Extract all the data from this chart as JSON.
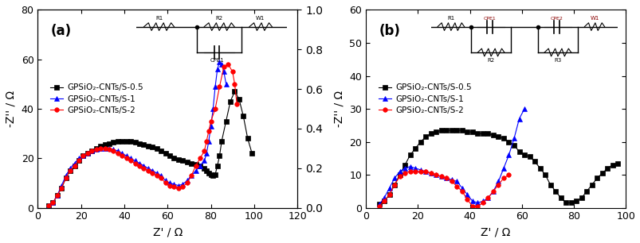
{
  "panel_a": {
    "title": "(a)",
    "xlabel": "Z' / Ω",
    "ylabel": "-Z'' / Ω",
    "xlim": [
      0,
      120
    ],
    "ylim": [
      0,
      80
    ],
    "xticks": [
      0,
      20,
      40,
      60,
      80,
      100,
      120
    ],
    "yticks": [
      0,
      20,
      40,
      60,
      80
    ],
    "series": {
      "black": {
        "label": "GPSiO₂-CNTs/S-0.5",
        "color": "black",
        "marker": "s",
        "x": [
          5,
          7,
          9,
          11,
          13,
          15,
          17,
          19,
          21,
          23,
          25,
          27,
          29,
          31,
          33,
          35,
          37,
          39,
          41,
          43,
          45,
          47,
          49,
          51,
          53,
          55,
          57,
          59,
          61,
          63,
          65,
          67,
          69,
          71,
          73,
          75,
          77,
          78,
          79,
          80,
          81,
          82,
          83,
          84,
          85,
          87,
          89,
          91,
          93,
          95,
          97,
          99
        ],
        "y": [
          1,
          2,
          5,
          8,
          12,
          15,
          17,
          19,
          21,
          22,
          23,
          24,
          25,
          25.5,
          26,
          26.5,
          27,
          27,
          27,
          27,
          26.5,
          26,
          25.5,
          25,
          24.5,
          24,
          23,
          22,
          21,
          20,
          19.5,
          19,
          18.5,
          18,
          17.5,
          17,
          16,
          15,
          14,
          13.5,
          13,
          13.5,
          17,
          21,
          27,
          35,
          43,
          47,
          44,
          37,
          28,
          22
        ]
      },
      "blue": {
        "label": "GPSiO₂-CNTs/S-1",
        "color": "blue",
        "marker": "^",
        "x": [
          5,
          7,
          9,
          11,
          13,
          15,
          17,
          19,
          21,
          23,
          25,
          27,
          29,
          31,
          33,
          35,
          37,
          39,
          41,
          43,
          45,
          47,
          49,
          51,
          53,
          55,
          57,
          59,
          61,
          63,
          65,
          67,
          69,
          71,
          73,
          75,
          77,
          78,
          79,
          80,
          81,
          82,
          83,
          84,
          85,
          86,
          87
        ],
        "y": [
          1,
          2,
          5,
          9,
          13,
          16,
          18,
          20,
          21,
          22,
          23,
          23.5,
          24,
          24,
          24,
          23.5,
          23,
          22,
          21,
          20,
          19,
          18,
          17,
          16,
          15,
          14,
          13,
          11,
          10,
          9.5,
          9,
          9.5,
          11,
          13,
          15,
          17,
          19,
          22,
          27,
          33,
          40,
          49,
          56,
          59,
          58,
          55,
          50
        ]
      },
      "red": {
        "label": "GPSiO₂-CNTs/S-2",
        "color": "red",
        "marker": "o",
        "x": [
          5,
          7,
          9,
          11,
          13,
          15,
          17,
          19,
          21,
          23,
          25,
          27,
          29,
          31,
          33,
          35,
          37,
          39,
          41,
          43,
          45,
          47,
          49,
          51,
          53,
          55,
          57,
          59,
          61,
          63,
          65,
          67,
          69,
          71,
          73,
          75,
          77,
          78,
          79,
          80,
          82,
          84,
          86,
          88,
          90,
          91,
          92
        ],
        "y": [
          1,
          2,
          5,
          8,
          12,
          15,
          17,
          19,
          21,
          22,
          23,
          23.5,
          24,
          24,
          23.5,
          23,
          22,
          21,
          20,
          19,
          18,
          17,
          16,
          15,
          14,
          13,
          12,
          10,
          9,
          8.5,
          8,
          8.5,
          10,
          13,
          17,
          20,
          23,
          27,
          31,
          35,
          40,
          49,
          57,
          58,
          55,
          50,
          42
        ]
      }
    }
  },
  "panel_b": {
    "title": "(b)",
    "xlabel": "Z' / Ω",
    "ylabel": "-Z'' / Ω",
    "xlim": [
      0,
      100
    ],
    "ylim": [
      0,
      60
    ],
    "xticks": [
      0,
      20,
      40,
      60,
      80,
      100
    ],
    "yticks": [
      0,
      10,
      20,
      30,
      40,
      50,
      60
    ],
    "series": {
      "black": {
        "label": "GPSiO₂-CNTs/S-0.5",
        "color": "black",
        "marker": "s",
        "x": [
          5,
          7,
          9,
          11,
          13,
          15,
          17,
          19,
          21,
          23,
          25,
          27,
          29,
          31,
          33,
          35,
          37,
          39,
          41,
          43,
          45,
          47,
          49,
          51,
          53,
          55,
          57,
          59,
          61,
          63,
          65,
          67,
          69,
          71,
          73,
          75,
          77,
          79,
          81,
          83,
          85,
          87,
          89,
          91,
          93,
          95,
          97
        ],
        "y": [
          1,
          2,
          4,
          7,
          10,
          13,
          16,
          18,
          20,
          21.5,
          22.5,
          23,
          23.5,
          23.5,
          23.5,
          23.5,
          23.5,
          23,
          23,
          22.5,
          22.5,
          22.5,
          22,
          21.5,
          21,
          20,
          19,
          17,
          16,
          15.5,
          14,
          12,
          10,
          7,
          5,
          3,
          1.5,
          1.5,
          2,
          3,
          5,
          7,
          9,
          10.5,
          12,
          13,
          13.5
        ]
      },
      "blue": {
        "label": "GPSiO₂-CNTs/S-1",
        "color": "blue",
        "marker": "^",
        "x": [
          5,
          7,
          9,
          11,
          13,
          15,
          17,
          19,
          21,
          23,
          25,
          27,
          29,
          31,
          33,
          35,
          37,
          39,
          41,
          43,
          45,
          47,
          49,
          51,
          53,
          55,
          57,
          59,
          61
        ],
        "y": [
          1,
          3,
          6,
          9,
          11,
          12,
          12.5,
          12,
          11.5,
          11,
          10.5,
          10,
          9.5,
          9,
          8.5,
          8,
          6,
          4,
          2,
          1.5,
          2,
          3,
          5,
          8,
          12,
          16,
          21,
          27,
          30
        ]
      },
      "red": {
        "label": "GPSiO₂-CNTs/S-2",
        "color": "red",
        "marker": "o",
        "x": [
          5,
          7,
          9,
          11,
          13,
          15,
          17,
          19,
          21,
          23,
          25,
          27,
          29,
          31,
          33,
          35,
          37,
          39,
          41,
          43,
          45,
          47,
          49,
          51,
          53,
          55
        ],
        "y": [
          0.5,
          2,
          4,
          7,
          9.5,
          10.5,
          11,
          11,
          11,
          11,
          10.5,
          10,
          9.5,
          9,
          8,
          6.5,
          5,
          2.5,
          0.5,
          0.5,
          1.5,
          3,
          5,
          7,
          9,
          10
        ]
      }
    }
  }
}
